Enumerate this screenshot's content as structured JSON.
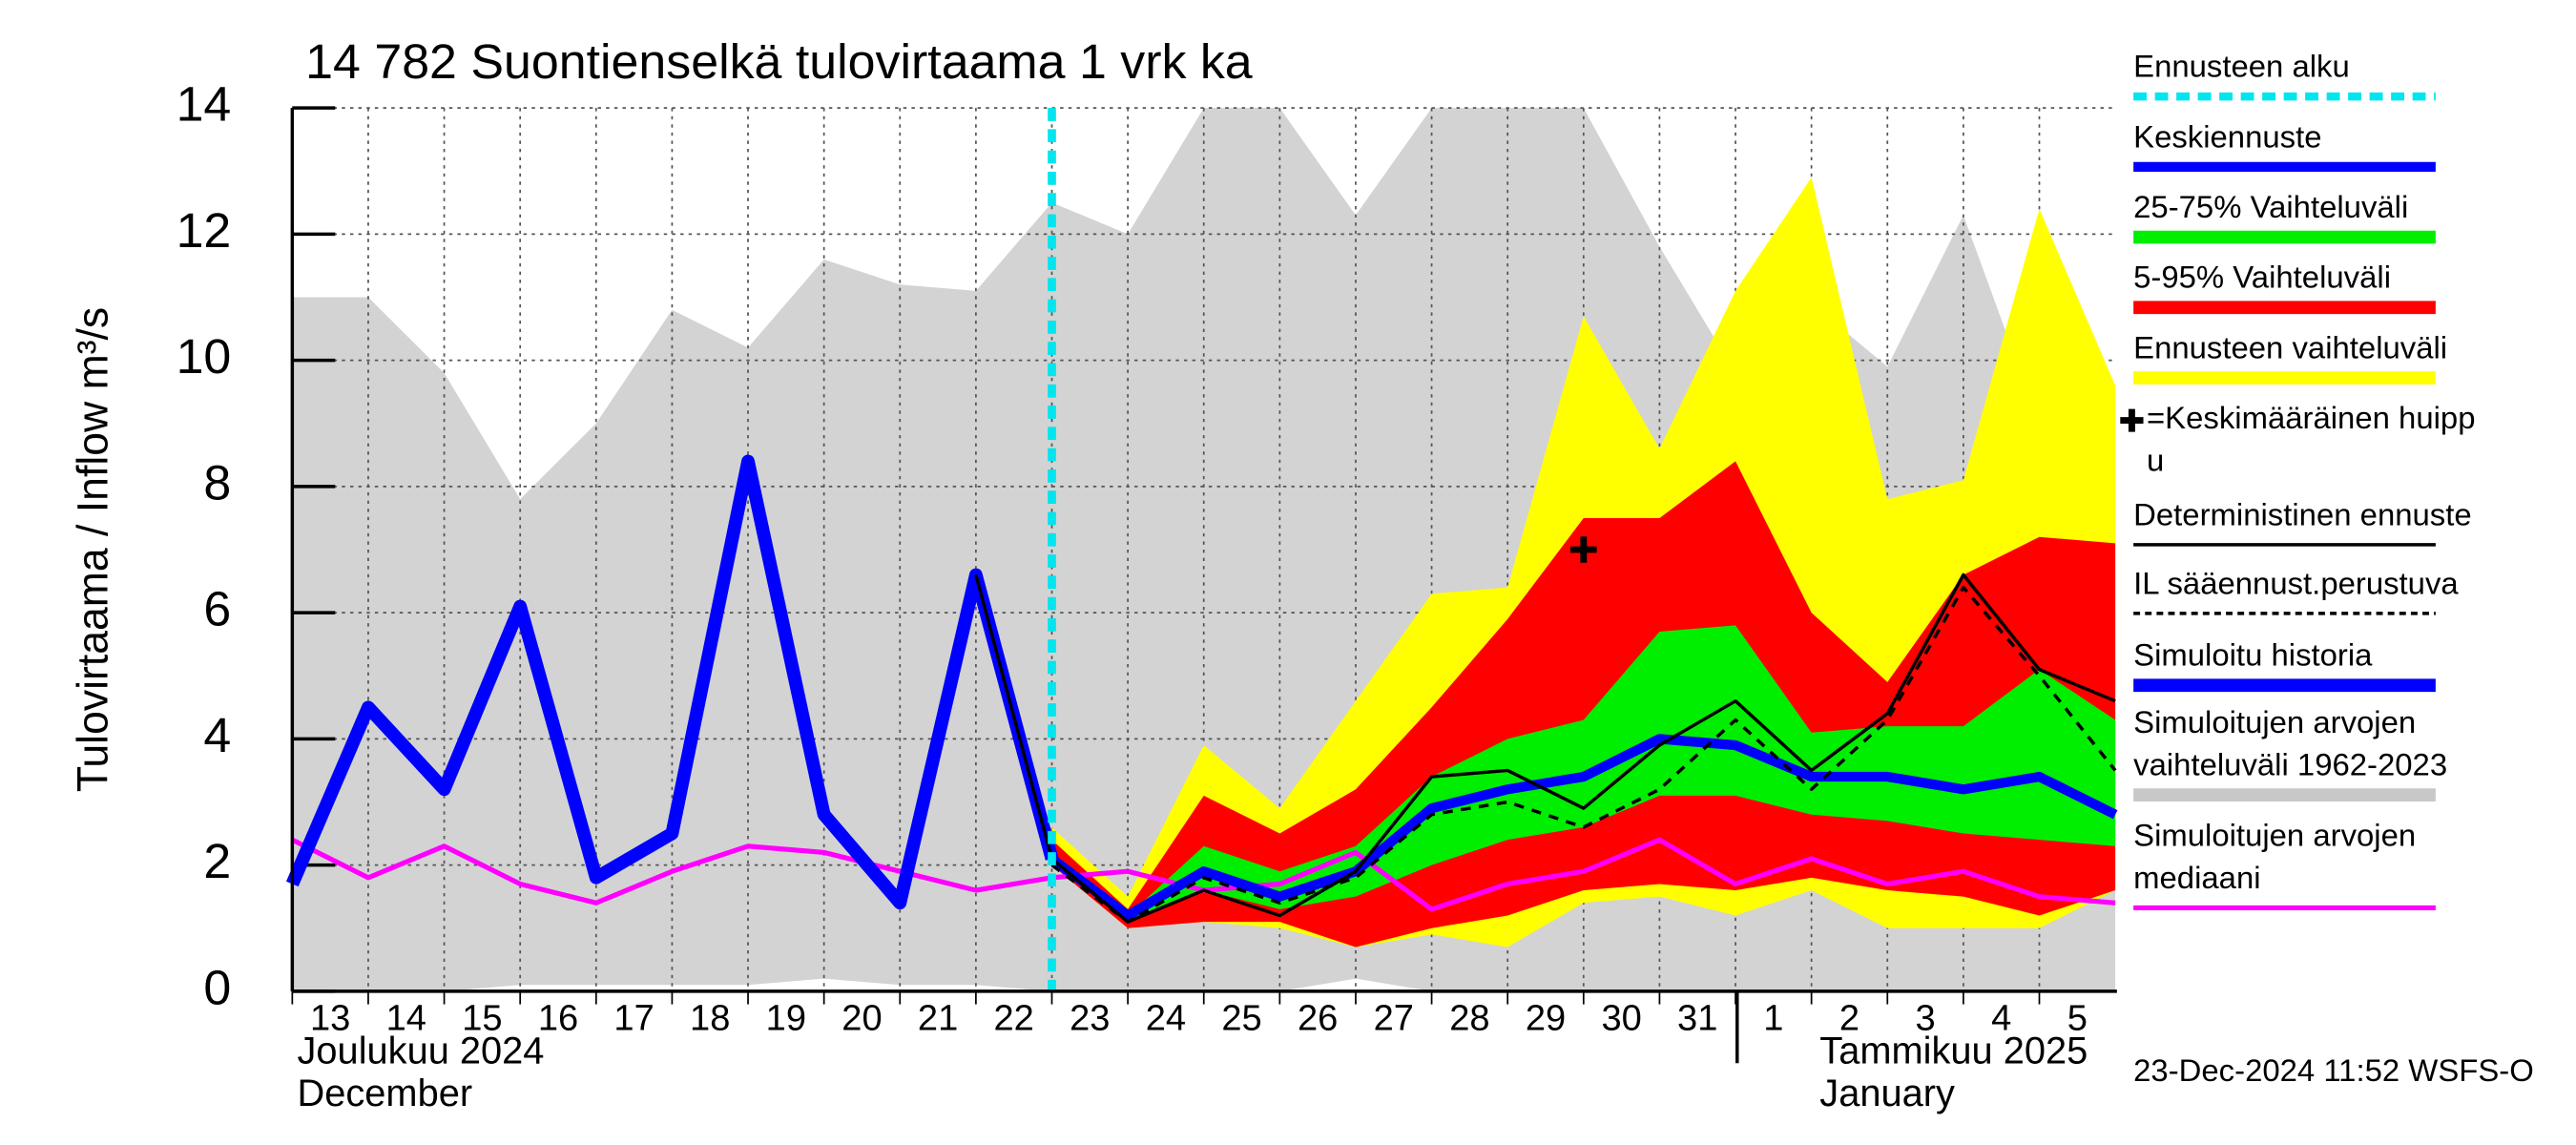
{
  "chart_data": {
    "type": "hydrograph",
    "title": "14 782 Suontienselkä tulovirtaama 1 vrk ka",
    "y_label": "Tulovirtaama / Inflow   m³/s",
    "x_month_labels": [
      "Joulukuu  2024",
      "December",
      "Tammikuu  2025",
      "January"
    ],
    "footer": "23-Dec-2024 11:52 WSFS-O",
    "ylim": [
      0,
      14
    ],
    "yticks": [
      0,
      2,
      4,
      6,
      8,
      10,
      12,
      14
    ],
    "grid": true,
    "forecast_start": "2024-12-23",
    "x": [
      "2024-12-13",
      "2024-12-14",
      "2024-12-15",
      "2024-12-16",
      "2024-12-17",
      "2024-12-18",
      "2024-12-19",
      "2024-12-20",
      "2024-12-21",
      "2024-12-22",
      "2024-12-23",
      "2024-12-24",
      "2024-12-25",
      "2024-12-26",
      "2024-12-27",
      "2024-12-28",
      "2024-12-29",
      "2024-12-30",
      "2024-12-31",
      "2025-01-01",
      "2025-01-02",
      "2025-01-03",
      "2025-01-04",
      "2025-01-05",
      "2025-01-06"
    ],
    "xticks": [
      {
        "value": "2024-12-13",
        "label": "13"
      },
      {
        "value": "2024-12-14",
        "label": "14"
      },
      {
        "value": "2024-12-15",
        "label": "15"
      },
      {
        "value": "2024-12-16",
        "label": "16"
      },
      {
        "value": "2024-12-17",
        "label": "17"
      },
      {
        "value": "2024-12-18",
        "label": "18"
      },
      {
        "value": "2024-12-19",
        "label": "19"
      },
      {
        "value": "2024-12-20",
        "label": "20"
      },
      {
        "value": "2024-12-21",
        "label": "21"
      },
      {
        "value": "2024-12-22",
        "label": "22"
      },
      {
        "value": "2024-12-23",
        "label": "23"
      },
      {
        "value": "2024-12-24",
        "label": "24"
      },
      {
        "value": "2024-12-25",
        "label": "25"
      },
      {
        "value": "2024-12-26",
        "label": "26"
      },
      {
        "value": "2024-12-27",
        "label": "27"
      },
      {
        "value": "2024-12-28",
        "label": "28"
      },
      {
        "value": "2024-12-29",
        "label": "29"
      },
      {
        "value": "2024-12-30",
        "label": "30"
      },
      {
        "value": "2024-12-31",
        "label": "31"
      },
      {
        "value": "2025-01-01",
        "label": "1"
      },
      {
        "value": "2025-01-02",
        "label": "2"
      },
      {
        "value": "2025-01-03",
        "label": "3"
      },
      {
        "value": "2025-01-04",
        "label": "4"
      },
      {
        "value": "2025-01-05",
        "label": "5"
      }
    ],
    "legend": [
      {
        "lines": [
          "Ennusteen alku"
        ],
        "symbol": "dashed",
        "color": "#00e5ee"
      },
      {
        "lines": [
          "Keskiennuste"
        ],
        "symbol": "line",
        "color": "#0000ff",
        "width": 6
      },
      {
        "lines": [
          "25-75% Vaihteluväli"
        ],
        "symbol": "line",
        "color": "#00ee00",
        "width": 8
      },
      {
        "lines": [
          "5-95% Vaihteluväli"
        ],
        "symbol": "line",
        "color": "#ff0000",
        "width": 8
      },
      {
        "lines": [
          "Ennusteen vaihteluväli"
        ],
        "symbol": "line",
        "color": "#ffff00",
        "width": 8
      },
      {
        "lines": [
          "=Keskimääräinen huipp",
          "u"
        ],
        "symbol": "plus",
        "color": "#000000"
      },
      {
        "lines": [
          "Deterministinen ennuste"
        ],
        "symbol": "line",
        "color": "#000000",
        "width": 2
      },
      {
        "lines": [
          "IL sääennust.perustuva"
        ],
        "symbol": "dotted",
        "color": "#000000",
        "width": 2
      },
      {
        "lines": [
          "Simuloitu historia"
        ],
        "symbol": "line",
        "color": "#0000ff",
        "width": 8
      },
      {
        "lines": [
          "Simuloitujen arvojen",
          "vaihteluväli 1962-2023"
        ],
        "symbol": "line",
        "color": "#c8c8c8",
        "width": 8
      },
      {
        "lines": [
          "Simuloitujen arvojen",
          "mediaani"
        ],
        "symbol": "line",
        "color": "#ff00ff",
        "width": 3
      }
    ],
    "bands": [
      {
        "legend": 9,
        "color": "#d3d3d3",
        "lower": [
          0,
          0,
          0,
          0.1,
          0.1,
          0.1,
          0.1,
          0.2,
          0.1,
          0.1,
          0,
          0,
          0,
          0,
          0.2,
          0,
          0,
          0,
          0,
          0,
          0,
          0,
          0,
          0,
          0
        ],
        "upper": [
          11,
          11,
          9.8,
          7.8,
          9,
          10.8,
          10.2,
          11.6,
          11.2,
          11.1,
          12.5,
          12,
          14,
          14,
          12.3,
          14,
          14,
          14,
          11.8,
          9.8,
          10.9,
          9.9,
          12.3,
          9,
          8
        ]
      },
      {
        "legend": 4,
        "color": "#ffff00",
        "lower": [
          null,
          null,
          null,
          null,
          null,
          null,
          null,
          null,
          null,
          null,
          2.0,
          1.0,
          1.1,
          1.0,
          0.7,
          0.9,
          0.7,
          1.4,
          1.5,
          1.2,
          1.6,
          1.0,
          1.0,
          1.0,
          1.6
        ],
        "upper": [
          null,
          null,
          null,
          null,
          null,
          null,
          null,
          null,
          null,
          null,
          2.6,
          1.5,
          3.9,
          2.9,
          4.6,
          6.3,
          6.4,
          10.7,
          8.6,
          11.1,
          12.9,
          7.8,
          8.1,
          12.4,
          9.6
        ]
      },
      {
        "legend": 3,
        "color": "#ff0000",
        "lower": [
          null,
          null,
          null,
          null,
          null,
          null,
          null,
          null,
          null,
          null,
          2.0,
          1.0,
          1.1,
          1.1,
          0.7,
          1.0,
          1.2,
          1.6,
          1.7,
          1.6,
          1.8,
          1.6,
          1.5,
          1.2,
          1.6
        ],
        "upper": [
          null,
          null,
          null,
          null,
          null,
          null,
          null,
          null,
          null,
          null,
          2.4,
          1.3,
          3.1,
          2.5,
          3.2,
          4.5,
          5.9,
          7.5,
          7.5,
          8.4,
          6.0,
          4.9,
          6.6,
          7.2,
          7.1
        ]
      },
      {
        "legend": 2,
        "color": "#00ee00",
        "lower": [
          null,
          null,
          null,
          null,
          null,
          null,
          null,
          null,
          null,
          null,
          2.1,
          1.1,
          1.6,
          1.3,
          1.5,
          2.0,
          2.4,
          2.6,
          3.1,
          3.1,
          2.8,
          2.7,
          2.5,
          2.4,
          2.3
        ],
        "upper": [
          null,
          null,
          null,
          null,
          null,
          null,
          null,
          null,
          null,
          null,
          2.2,
          1.2,
          2.3,
          1.9,
          2.3,
          3.4,
          4.0,
          4.3,
          5.7,
          5.8,
          4.1,
          4.2,
          4.2,
          5.1,
          4.3
        ]
      }
    ],
    "series": [
      {
        "legend": 10,
        "color": "#ff00ff",
        "width": 3,
        "values": [
          2.4,
          1.8,
          2.3,
          1.7,
          1.4,
          1.9,
          2.3,
          2.2,
          1.9,
          1.6,
          1.8,
          1.9,
          1.6,
          1.7,
          2.2,
          1.3,
          1.7,
          1.9,
          2.4,
          1.7,
          2.1,
          1.7,
          1.9,
          1.5,
          1.4
        ]
      },
      {
        "legend": 8,
        "color": "#0000ff",
        "width": 8,
        "values": [
          1.7,
          4.5,
          3.2,
          6.1,
          1.8,
          2.5,
          8.4,
          2.8,
          1.4,
          6.6,
          2.1,
          null,
          null,
          null,
          null,
          null,
          null,
          null,
          null,
          null,
          null,
          null,
          null,
          null,
          null
        ]
      },
      {
        "legend": 1,
        "color": "#0000ff",
        "width": 6,
        "values": [
          null,
          null,
          null,
          null,
          null,
          null,
          null,
          null,
          null,
          null,
          2.1,
          1.2,
          1.9,
          1.5,
          1.9,
          2.9,
          3.2,
          3.4,
          4.0,
          3.9,
          3.4,
          3.4,
          3.2,
          3.4,
          2.8
        ]
      },
      {
        "legend": 7,
        "color": "#000000",
        "width": 2,
        "dash": true,
        "values": [
          null,
          null,
          null,
          null,
          null,
          null,
          null,
          null,
          null,
          null,
          2.0,
          1.1,
          1.8,
          1.4,
          1.8,
          2.8,
          3.0,
          2.6,
          3.2,
          4.3,
          3.2,
          4.3,
          6.4,
          5.0,
          3.5
        ]
      },
      {
        "legend": 6,
        "color": "#000000",
        "width": 2,
        "values": [
          null,
          null,
          null,
          null,
          null,
          null,
          null,
          null,
          null,
          6.6,
          2.1,
          1.1,
          1.6,
          1.2,
          1.9,
          3.4,
          3.5,
          2.9,
          3.9,
          4.6,
          3.5,
          4.4,
          6.6,
          5.1,
          4.6
        ]
      }
    ],
    "peak": {
      "legend": 5,
      "x": "2024-12-30",
      "value": 7.0
    }
  }
}
